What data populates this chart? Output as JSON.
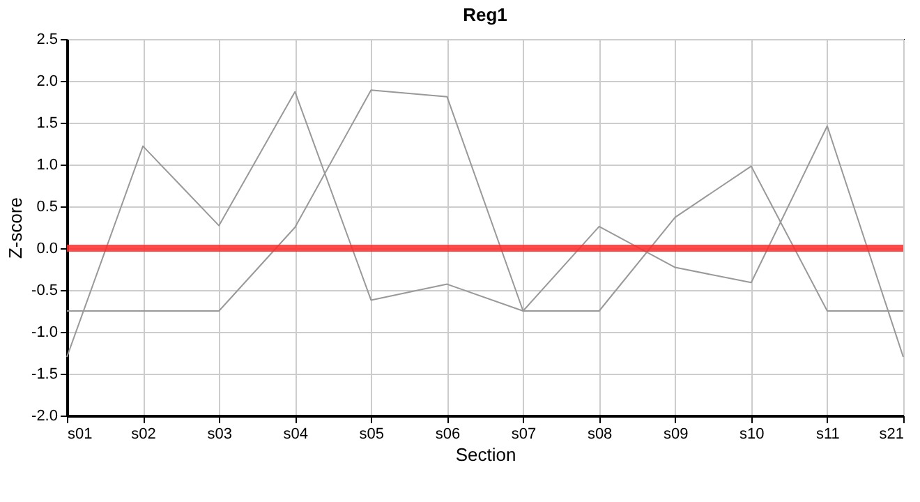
{
  "chart_data": {
    "type": "line",
    "title": "Reg1",
    "xlabel": "Section",
    "ylabel": "Z-score",
    "categories": [
      "s01",
      "s02",
      "s03",
      "s04",
      "s05",
      "s06",
      "s07",
      "s08",
      "s09",
      "s10",
      "s11",
      "s21"
    ],
    "series": [
      {
        "color": "#999999",
        "values": [
          -1.3,
          1.22,
          0.27,
          1.87,
          -0.62,
          -0.43,
          -0.75,
          0.26,
          -0.23,
          -0.41,
          1.46,
          -1.3
        ]
      },
      {
        "color": "#999999",
        "values": [
          -0.75,
          -0.75,
          -0.75,
          0.25,
          1.89,
          1.81,
          -0.75,
          -0.75,
          0.37,
          0.98,
          -0.75,
          -0.75
        ]
      }
    ],
    "ylim": [
      -2.0,
      2.5
    ],
    "yticks": [
      {
        "value": -2,
        "label": "-2.0"
      },
      {
        "value": -1.5,
        "label": "-1.5"
      },
      {
        "value": -1,
        "label": "-1.0"
      },
      {
        "value": -0.5,
        "label": "-0.5"
      },
      {
        "value": 0,
        "label": "0.0"
      },
      {
        "value": 0.5,
        "label": "0.5"
      },
      {
        "value": 1,
        "label": "1.0"
      },
      {
        "value": 1.5,
        "label": "1.5"
      },
      {
        "value": 2,
        "label": "2.0"
      },
      {
        "value": 2.5,
        "label": "2.5"
      }
    ],
    "ref_lines": [
      {
        "axis": "y",
        "value": 0,
        "color": "#ff2a2a"
      }
    ],
    "grid": true,
    "marker": "none",
    "line_style": "solid"
  }
}
